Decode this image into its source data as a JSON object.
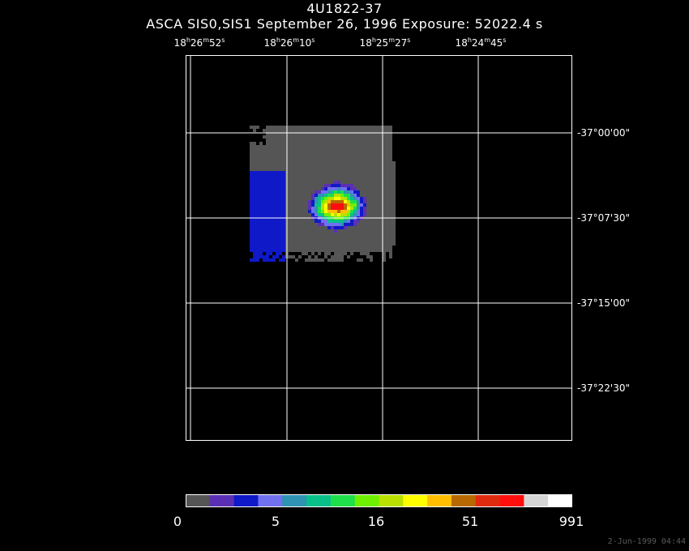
{
  "chart_data": {
    "type": "heatmap",
    "title": "4U1822-37",
    "subtitle": "ASCA SIS0,SIS1 September 26, 1996 Exposure: 52022.4 s",
    "ra_ticks": [
      {
        "h": "18",
        "m": "26",
        "s": "52"
      },
      {
        "h": "18",
        "m": "26",
        "s": "10"
      },
      {
        "h": "18",
        "m": "25",
        "s": "27"
      },
      {
        "h": "18",
        "m": "24",
        "s": "45"
      }
    ],
    "dec_ticks": [
      {
        "d": "-37",
        "m": "00",
        "s": "00"
      },
      {
        "d": "-37",
        "m": "07",
        "s": "30"
      },
      {
        "d": "-37",
        "m": "15",
        "s": "00"
      },
      {
        "d": "-37",
        "m": "22",
        "s": "30"
      }
    ],
    "colorbar": {
      "labels": [
        "0",
        "5",
        "16",
        "51",
        "991"
      ],
      "colors": [
        "#555555",
        "#5a2fb6",
        "#0f19c8",
        "#7070f0",
        "#2f93b3",
        "#08c08a",
        "#1de04a",
        "#6ef000",
        "#b9e000",
        "#ffff00",
        "#ffbf00",
        "#b86800",
        "#e02a10",
        "#ff0e0e",
        "#d6d6d6",
        "#ffffff"
      ]
    },
    "grid": true,
    "scale": "log",
    "source_position": {
      "ra": "18h25m48s",
      "dec": "-37°06'30\""
    }
  },
  "footer": {
    "timestamp": "2-Jun-1999 04:44"
  }
}
